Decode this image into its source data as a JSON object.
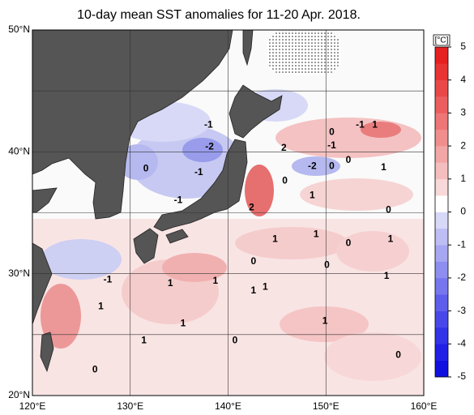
{
  "title": "10-day mean SST anomalies for 11-20 Apr. 2018.",
  "map": {
    "lonlim": [
      120,
      160
    ],
    "latlim": [
      20,
      50
    ],
    "xticks": [
      {
        "value": 120,
        "label": "120°E"
      },
      {
        "value": 130,
        "label": "130°E"
      },
      {
        "value": 140,
        "label": "140°E"
      },
      {
        "value": 150,
        "label": "150°E"
      },
      {
        "value": 160,
        "label": "160°E"
      }
    ],
    "yticks": [
      {
        "value": 20,
        "label": "20°N"
      },
      {
        "value": 30,
        "label": "30°N"
      },
      {
        "value": 40,
        "label": "40°N"
      },
      {
        "value": 50,
        "label": "50°N"
      }
    ],
    "lat_grid": [
      25,
      30,
      35,
      40,
      45
    ],
    "contour_labels": [
      {
        "value": -1,
        "lon": 138.0,
        "lat": 42.2
      },
      {
        "value": -2,
        "lon": 138.1,
        "lat": 40.4
      },
      {
        "value": 0,
        "lon": 131.6,
        "lat": 38.6
      },
      {
        "value": -1,
        "lon": 137.0,
        "lat": 38.3
      },
      {
        "value": -1,
        "lon": 134.9,
        "lat": 36.0
      },
      {
        "value": 2,
        "lon": 145.7,
        "lat": 40.3
      },
      {
        "value": 0,
        "lon": 150.6,
        "lat": 41.6
      },
      {
        "value": -1,
        "lon": 153.5,
        "lat": 42.2
      },
      {
        "value": 1,
        "lon": 155.0,
        "lat": 42.2
      },
      {
        "value": -1,
        "lon": 150.6,
        "lat": 40.5
      },
      {
        "value": -2,
        "lon": 148.6,
        "lat": 38.8
      },
      {
        "value": 0,
        "lon": 150.6,
        "lat": 38.8
      },
      {
        "value": 0,
        "lon": 152.3,
        "lat": 39.3
      },
      {
        "value": 1,
        "lon": 155.9,
        "lat": 38.7
      },
      {
        "value": 0,
        "lon": 145.8,
        "lat": 37.6
      },
      {
        "value": 1,
        "lon": 148.6,
        "lat": 36.4
      },
      {
        "value": 2,
        "lon": 142.4,
        "lat": 35.4
      },
      {
        "value": 0,
        "lon": 156.4,
        "lat": 35.2
      },
      {
        "value": 1,
        "lon": 149.0,
        "lat": 33.2
      },
      {
        "value": 1,
        "lon": 144.8,
        "lat": 32.8
      },
      {
        "value": 0,
        "lon": 152.3,
        "lat": 32.5
      },
      {
        "value": 1,
        "lon": 156.6,
        "lat": 32.8
      },
      {
        "value": 0,
        "lon": 142.6,
        "lat": 31.0
      },
      {
        "value": 0,
        "lon": 150.1,
        "lat": 30.7
      },
      {
        "value": -1,
        "lon": 127.7,
        "lat": 29.5
      },
      {
        "value": 1,
        "lon": 134.1,
        "lat": 29.2
      },
      {
        "value": 1,
        "lon": 138.7,
        "lat": 29.4
      },
      {
        "value": 1,
        "lon": 142.6,
        "lat": 28.6
      },
      {
        "value": 1,
        "lon": 143.8,
        "lat": 28.9
      },
      {
        "value": 1,
        "lon": 156.2,
        "lat": 29.8
      },
      {
        "value": 1,
        "lon": 127.0,
        "lat": 27.3
      },
      {
        "value": 1,
        "lon": 135.4,
        "lat": 25.9
      },
      {
        "value": 1,
        "lon": 149.9,
        "lat": 26.1
      },
      {
        "value": 1,
        "lon": 131.4,
        "lat": 24.5
      },
      {
        "value": 0,
        "lon": 140.7,
        "lat": 24.5
      },
      {
        "value": 0,
        "lon": 126.4,
        "lat": 22.1
      },
      {
        "value": 0,
        "lon": 157.4,
        "lat": 23.3
      }
    ]
  },
  "colorbar": {
    "unit": "[°C]",
    "clim": [
      -5,
      5
    ],
    "ticks": [
      5,
      4,
      3,
      2,
      1,
      0,
      -1,
      -2,
      -3,
      -4,
      -5
    ],
    "colors": [
      "#1010e0",
      "#2020e6",
      "#3333e8",
      "#4848ea",
      "#5e5eec",
      "#7676ee",
      "#8e8ef0",
      "#a6a6f2",
      "#bebef5",
      "#d8d8f8",
      "#ffffff",
      "#f8d8d8",
      "#f5bebe",
      "#f2a6a6",
      "#f08e8e",
      "#ee7676",
      "#ec5e5e",
      "#ea4848",
      "#e83333",
      "#e62020"
    ]
  }
}
